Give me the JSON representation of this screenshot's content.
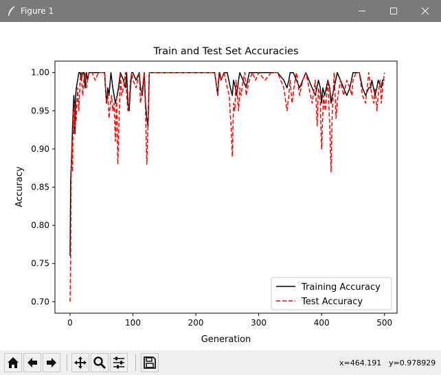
{
  "window": {
    "title": "Figure 1"
  },
  "chart_data": {
    "type": "line",
    "title": "Train and Test Set Accuracies",
    "xlabel": "Generation",
    "ylabel": "Accuracy",
    "xlim": [
      -24,
      520
    ],
    "ylim": [
      0.685,
      1.015
    ],
    "xticks": [
      0,
      100,
      200,
      300,
      400,
      500
    ],
    "yticks": [
      0.7,
      0.75,
      0.8,
      0.85,
      0.9,
      0.95,
      1.0
    ],
    "ytick_labels": [
      "0.70",
      "0.75",
      "0.80",
      "0.85",
      "0.90",
      "0.95",
      "1.00"
    ],
    "grid": false,
    "legend_position": "bottom-right",
    "series": [
      {
        "name": "Training Accuracy",
        "color": "#000000",
        "style": "solid",
        "x": [
          0,
          1,
          2,
          3,
          4,
          5,
          6,
          7,
          8,
          9,
          10,
          12,
          14,
          16,
          18,
          20,
          22,
          24,
          26,
          28,
          30,
          35,
          40,
          45,
          50,
          55,
          57,
          58,
          60,
          62,
          65,
          68,
          70,
          72,
          75,
          77,
          80,
          85,
          88,
          90,
          92,
          94,
          96,
          98,
          100,
          105,
          110,
          112,
          115,
          118,
          120,
          122,
          124,
          126,
          130,
          140,
          150,
          160,
          170,
          180,
          190,
          200,
          210,
          220,
          230,
          235,
          236,
          238,
          240,
          245,
          250,
          255,
          258,
          260,
          263,
          265,
          268,
          270,
          275,
          280,
          285,
          290,
          295,
          300,
          310,
          320,
          330,
          340,
          345,
          348,
          350,
          355,
          360,
          365,
          370,
          375,
          380,
          385,
          390,
          395,
          398,
          400,
          402,
          405,
          410,
          413,
          415,
          417,
          420,
          425,
          430,
          435,
          440,
          445,
          450,
          455,
          460,
          465,
          470,
          475,
          478,
          480,
          485,
          488,
          490,
          495,
          497,
          500
        ],
        "y": [
          0.76,
          0.86,
          0.88,
          0.9,
          0.93,
          0.95,
          0.97,
          0.96,
          0.92,
          0.97,
          0.98,
          0.99,
          1.0,
          1.0,
          0.99,
          1.0,
          1.0,
          0.98,
          1.0,
          0.99,
          1.0,
          1.0,
          1.0,
          1.0,
          1.0,
          1.0,
          0.97,
          0.96,
          0.98,
          0.97,
          1.0,
          0.98,
          0.97,
          0.96,
          0.97,
          0.98,
          1.0,
          0.99,
          0.98,
          1.0,
          0.96,
          0.95,
          0.98,
          1.0,
          1.0,
          0.99,
          1.0,
          0.98,
          0.97,
          1.0,
          0.96,
          0.94,
          0.93,
          1.0,
          1.0,
          1.0,
          1.0,
          1.0,
          1.0,
          1.0,
          1.0,
          1.0,
          1.0,
          1.0,
          1.0,
          0.97,
          0.99,
          1.0,
          0.99,
          1.0,
          1.0,
          0.98,
          0.97,
          0.99,
          0.98,
          0.97,
          0.99,
          1.0,
          0.99,
          0.98,
          1.0,
          1.0,
          1.0,
          1.0,
          1.0,
          1.0,
          1.0,
          0.99,
          0.98,
          0.99,
          1.0,
          1.0,
          0.99,
          0.98,
          0.99,
          1.0,
          0.99,
          0.98,
          0.97,
          0.99,
          0.98,
          0.96,
          0.98,
          0.97,
          0.99,
          0.98,
          0.96,
          0.97,
          0.98,
          1.0,
          0.99,
          0.98,
          0.97,
          0.98,
          1.0,
          1.0,
          1.0,
          0.98,
          0.97,
          0.98,
          0.98,
          0.99,
          0.97,
          0.98,
          0.99,
          0.98,
          0.99,
          0.99
        ]
      },
      {
        "name": "Test Accuracy",
        "color": "#ff0000",
        "style": "dashed",
        "x": [
          0,
          1,
          2,
          3,
          4,
          5,
          6,
          7,
          8,
          10,
          12,
          14,
          16,
          18,
          20,
          22,
          24,
          26,
          28,
          30,
          35,
          40,
          45,
          50,
          55,
          58,
          60,
          62,
          64,
          66,
          68,
          70,
          72,
          74,
          76,
          78,
          80,
          82,
          85,
          88,
          90,
          92,
          94,
          96,
          98,
          100,
          105,
          110,
          112,
          115,
          118,
          120,
          122,
          124,
          126,
          130,
          140,
          150,
          160,
          170,
          180,
          190,
          200,
          210,
          220,
          230,
          235,
          237,
          240,
          245,
          250,
          253,
          256,
          258,
          260,
          262,
          264,
          266,
          268,
          270,
          272,
          275,
          278,
          280,
          285,
          290,
          295,
          300,
          310,
          320,
          330,
          340,
          345,
          348,
          350,
          353,
          356,
          360,
          365,
          370,
          375,
          380,
          385,
          390,
          393,
          395,
          398,
          400,
          403,
          406,
          410,
          413,
          415,
          417,
          420,
          423,
          426,
          430,
          435,
          440,
          445,
          448,
          450,
          455,
          460,
          465,
          470,
          475,
          478,
          480,
          483,
          485,
          488,
          490,
          493,
          495,
          497,
          500
        ],
        "y": [
          0.7,
          0.76,
          0.88,
          0.91,
          0.87,
          0.95,
          0.92,
          0.96,
          0.93,
          0.94,
          0.98,
          0.95,
          0.99,
          1.0,
          0.97,
          0.99,
          1.0,
          0.98,
          0.99,
          1.0,
          1.0,
          0.99,
          1.0,
          1.0,
          1.0,
          0.96,
          0.97,
          0.94,
          0.96,
          0.97,
          0.95,
          0.96,
          0.91,
          0.97,
          0.88,
          0.94,
          1.0,
          0.97,
          0.98,
          1.0,
          0.97,
          0.95,
          0.96,
          0.99,
          1.0,
          0.99,
          0.98,
          1.0,
          0.96,
          0.98,
          1.0,
          0.95,
          0.88,
          0.93,
          1.0,
          1.0,
          1.0,
          1.0,
          1.0,
          1.0,
          1.0,
          1.0,
          1.0,
          1.0,
          1.0,
          1.0,
          0.97,
          1.0,
          0.99,
          1.0,
          0.98,
          0.97,
          0.93,
          0.89,
          0.96,
          0.95,
          0.99,
          0.97,
          0.95,
          0.98,
          0.97,
          0.99,
          1.0,
          0.97,
          0.99,
          1.0,
          0.99,
          1.0,
          0.99,
          1.0,
          1.0,
          0.98,
          0.95,
          0.97,
          0.99,
          0.96,
          0.98,
          1.0,
          0.97,
          0.99,
          1.0,
          0.98,
          0.96,
          0.99,
          0.93,
          0.98,
          0.96,
          0.9,
          0.97,
          0.95,
          0.99,
          0.93,
          0.87,
          0.95,
          1.0,
          0.94,
          0.97,
          0.99,
          0.97,
          0.99,
          0.98,
          0.97,
          0.99,
          1.0,
          1.0,
          0.97,
          0.96,
          1.0,
          0.98,
          0.97,
          0.96,
          0.98,
          0.95,
          0.97,
          0.99,
          0.96,
          0.98,
          1.0
        ]
      }
    ]
  },
  "toolbar": {
    "buttons": [
      {
        "name": "home-button",
        "icon": "home-icon"
      },
      {
        "name": "back-button",
        "icon": "arrow-left-icon"
      },
      {
        "name": "forward-button",
        "icon": "arrow-right-icon"
      },
      {
        "name": "pan-button",
        "icon": "move-icon"
      },
      {
        "name": "zoom-button",
        "icon": "magnifier-icon"
      },
      {
        "name": "subplots-button",
        "icon": "sliders-icon"
      },
      {
        "name": "save-button",
        "icon": "floppy-icon"
      }
    ],
    "x_readout": "x=464.191",
    "y_readout": "y=0.978929"
  }
}
